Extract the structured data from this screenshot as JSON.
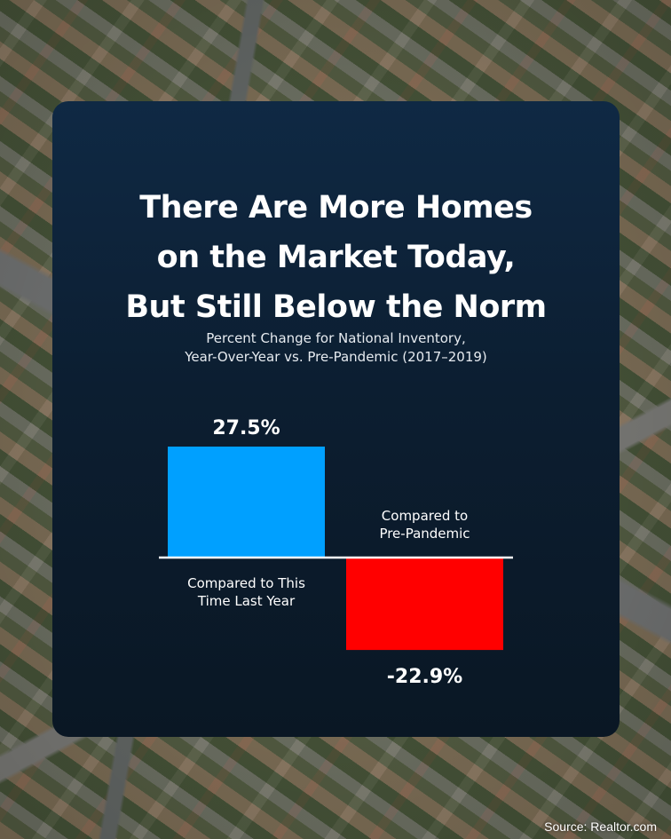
{
  "title_lines": [
    "There Are More Homes",
    "on the Market Today,",
    "But Still Below the Norm"
  ],
  "subtitle_lines": [
    "Percent Change for National Inventory,",
    "Year-Over-Year vs. Pre-Pandemic (2017–2019)"
  ],
  "source": "Source: Realtor.com",
  "colors": {
    "positive_bar": "#00a0ff",
    "negative_bar": "#ff0000",
    "baseline": "#ffffff"
  },
  "chart_data": {
    "type": "bar",
    "categories": [
      [
        "Compared to This",
        "Time Last Year"
      ],
      [
        "Compared to",
        "Pre-Pandemic"
      ]
    ],
    "values": [
      27.5,
      -22.9
    ],
    "value_labels": [
      "27.5%",
      "-22.9%"
    ],
    "title": "There Are More Homes on the Market Today, But Still Below the Norm",
    "xlabel": "",
    "ylabel": "",
    "ylim": [
      -27.5,
      27.5
    ],
    "grid": false,
    "legend": "none"
  }
}
